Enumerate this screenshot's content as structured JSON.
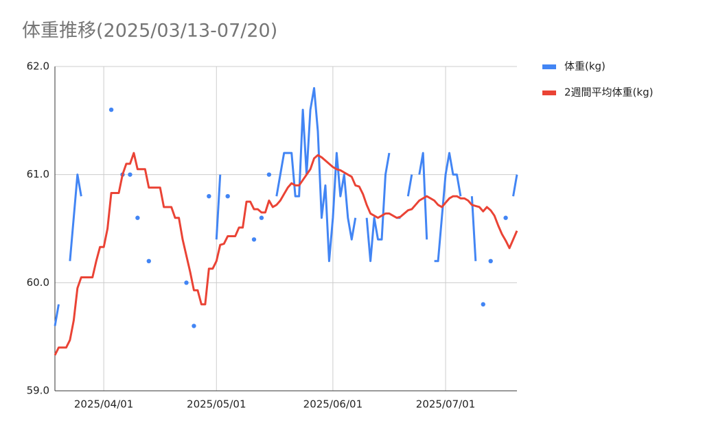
{
  "chart_data": {
    "type": "line",
    "title": "体重推移(2025/03/13-07/20)",
    "x": [
      "2025/03/19",
      "2025/03/20",
      "2025/03/21",
      "2025/03/22",
      "2025/03/23",
      "2025/03/24",
      "2025/03/25",
      "2025/03/26",
      "2025/03/27",
      "2025/03/28",
      "2025/03/29",
      "2025/03/30",
      "2025/03/31",
      "2025/04/01",
      "2025/04/02",
      "2025/04/03",
      "2025/04/04",
      "2025/04/05",
      "2025/04/06",
      "2025/04/07",
      "2025/04/08",
      "2025/04/09",
      "2025/04/10",
      "2025/04/11",
      "2025/04/12",
      "2025/04/13",
      "2025/04/14",
      "2025/04/15",
      "2025/04/16",
      "2025/04/17",
      "2025/04/18",
      "2025/04/19",
      "2025/04/20",
      "2025/04/21",
      "2025/04/22",
      "2025/04/23",
      "2025/04/24",
      "2025/04/25",
      "2025/04/26",
      "2025/04/27",
      "2025/04/28",
      "2025/04/29",
      "2025/04/30",
      "2025/05/01",
      "2025/05/02",
      "2025/05/03",
      "2025/05/04",
      "2025/05/05",
      "2025/05/06",
      "2025/05/07",
      "2025/05/08",
      "2025/05/09",
      "2025/05/10",
      "2025/05/11",
      "2025/05/12",
      "2025/05/13",
      "2025/05/14",
      "2025/05/15",
      "2025/05/16",
      "2025/05/17",
      "2025/05/18",
      "2025/05/19",
      "2025/05/20",
      "2025/05/21",
      "2025/05/22",
      "2025/05/23",
      "2025/05/24",
      "2025/05/25",
      "2025/05/26",
      "2025/05/27",
      "2025/05/28",
      "2025/05/29",
      "2025/05/30",
      "2025/05/31",
      "2025/06/01",
      "2025/06/02",
      "2025/06/03",
      "2025/06/04",
      "2025/06/05",
      "2025/06/06",
      "2025/06/07",
      "2025/06/08",
      "2025/06/09",
      "2025/06/10",
      "2025/06/11",
      "2025/06/12",
      "2025/06/13",
      "2025/06/14",
      "2025/06/15",
      "2025/06/16",
      "2025/06/17",
      "2025/06/18",
      "2025/06/19",
      "2025/06/20",
      "2025/06/21",
      "2025/06/22",
      "2025/06/23",
      "2025/06/24",
      "2025/06/25",
      "2025/06/26",
      "2025/06/27",
      "2025/06/28",
      "2025/06/29",
      "2025/06/30",
      "2025/07/01",
      "2025/07/02",
      "2025/07/03",
      "2025/07/04",
      "2025/07/05",
      "2025/07/06",
      "2025/07/07",
      "2025/07/08",
      "2025/07/09",
      "2025/07/10",
      "2025/07/11",
      "2025/07/12",
      "2025/07/13",
      "2025/07/14",
      "2025/07/15",
      "2025/07/16",
      "2025/07/17",
      "2025/07/18",
      "2025/07/19",
      "2025/07/20"
    ],
    "series": [
      {
        "name": "体重(kg)",
        "color": "#4285f4",
        "values": [
          59.6,
          59.8,
          null,
          null,
          60.2,
          60.6,
          61.0,
          60.8,
          null,
          null,
          null,
          null,
          null,
          null,
          null,
          61.6,
          null,
          null,
          61.0,
          null,
          61.0,
          null,
          60.6,
          null,
          null,
          60.2,
          null,
          null,
          null,
          null,
          null,
          null,
          null,
          null,
          null,
          60.0,
          null,
          59.6,
          null,
          null,
          null,
          60.8,
          null,
          60.4,
          61.0,
          null,
          60.8,
          null,
          null,
          null,
          null,
          null,
          null,
          60.4,
          null,
          60.6,
          null,
          61.0,
          null,
          60.8,
          61.0,
          61.2,
          61.2,
          61.2,
          60.8,
          60.8,
          61.6,
          61.0,
          61.6,
          61.8,
          61.4,
          60.6,
          60.9,
          60.2,
          60.6,
          61.2,
          60.8,
          61.0,
          60.6,
          60.4,
          60.6,
          null,
          null,
          60.6,
          60.2,
          60.6,
          60.4,
          60.4,
          61.0,
          61.2,
          null,
          60.6,
          60.6,
          null,
          60.8,
          61.0,
          null,
          61.0,
          61.2,
          60.4,
          null,
          60.2,
          60.2,
          60.6,
          61.0,
          61.2,
          61.0,
          61.0,
          60.8,
          null,
          null,
          60.8,
          60.2,
          null,
          59.8,
          null,
          60.2,
          null,
          null,
          null,
          60.6,
          null,
          60.8,
          61.0
        ]
      },
      {
        "name": "2週間平均体重(kg)",
        "color": "#ea4335",
        "values": [
          59.33,
          59.4,
          59.4,
          59.4,
          59.47,
          59.65,
          59.95,
          60.05,
          60.05,
          60.05,
          60.05,
          60.2,
          60.33,
          60.33,
          60.5,
          60.83,
          60.83,
          60.83,
          61.0,
          61.1,
          61.1,
          61.2,
          61.05,
          61.05,
          61.05,
          60.88,
          60.88,
          60.88,
          60.88,
          60.7,
          60.7,
          60.7,
          60.6,
          60.6,
          60.4,
          60.25,
          60.1,
          59.93,
          59.93,
          59.8,
          59.8,
          60.13,
          60.13,
          60.2,
          60.35,
          60.36,
          60.43,
          60.43,
          60.43,
          60.51,
          60.51,
          60.75,
          60.75,
          60.68,
          60.68,
          60.65,
          60.65,
          60.76,
          60.7,
          60.72,
          60.76,
          60.82,
          60.88,
          60.92,
          60.9,
          60.9,
          60.95,
          61.0,
          61.05,
          61.15,
          61.18,
          61.16,
          61.13,
          61.1,
          61.07,
          61.05,
          61.04,
          61.02,
          61.0,
          60.98,
          60.9,
          60.89,
          60.82,
          60.72,
          60.64,
          60.62,
          60.6,
          60.62,
          60.64,
          60.64,
          60.62,
          60.6,
          60.61,
          60.64,
          60.67,
          60.68,
          60.72,
          60.76,
          60.78,
          60.8,
          60.78,
          60.76,
          60.72,
          60.7,
          60.74,
          60.78,
          60.8,
          60.8,
          60.78,
          60.78,
          60.76,
          60.72,
          60.71,
          60.7,
          60.66,
          60.7,
          60.67,
          60.62,
          60.53,
          60.45,
          60.39,
          60.32,
          60.4,
          60.48
        ]
      }
    ],
    "xlim": [
      "2025/03/19",
      "2025/07/20"
    ],
    "xticks": [
      "2025/04/01",
      "2025/05/01",
      "2025/06/01",
      "2025/07/01"
    ],
    "ylim": [
      59,
      62
    ],
    "yticks": [
      {
        "value": 59,
        "label": "59.0"
      },
      {
        "value": 60,
        "label": "60.0"
      },
      {
        "value": 61,
        "label": "61.0"
      },
      {
        "value": 62,
        "label": "62.0"
      }
    ],
    "grid": true,
    "legend": "right"
  }
}
